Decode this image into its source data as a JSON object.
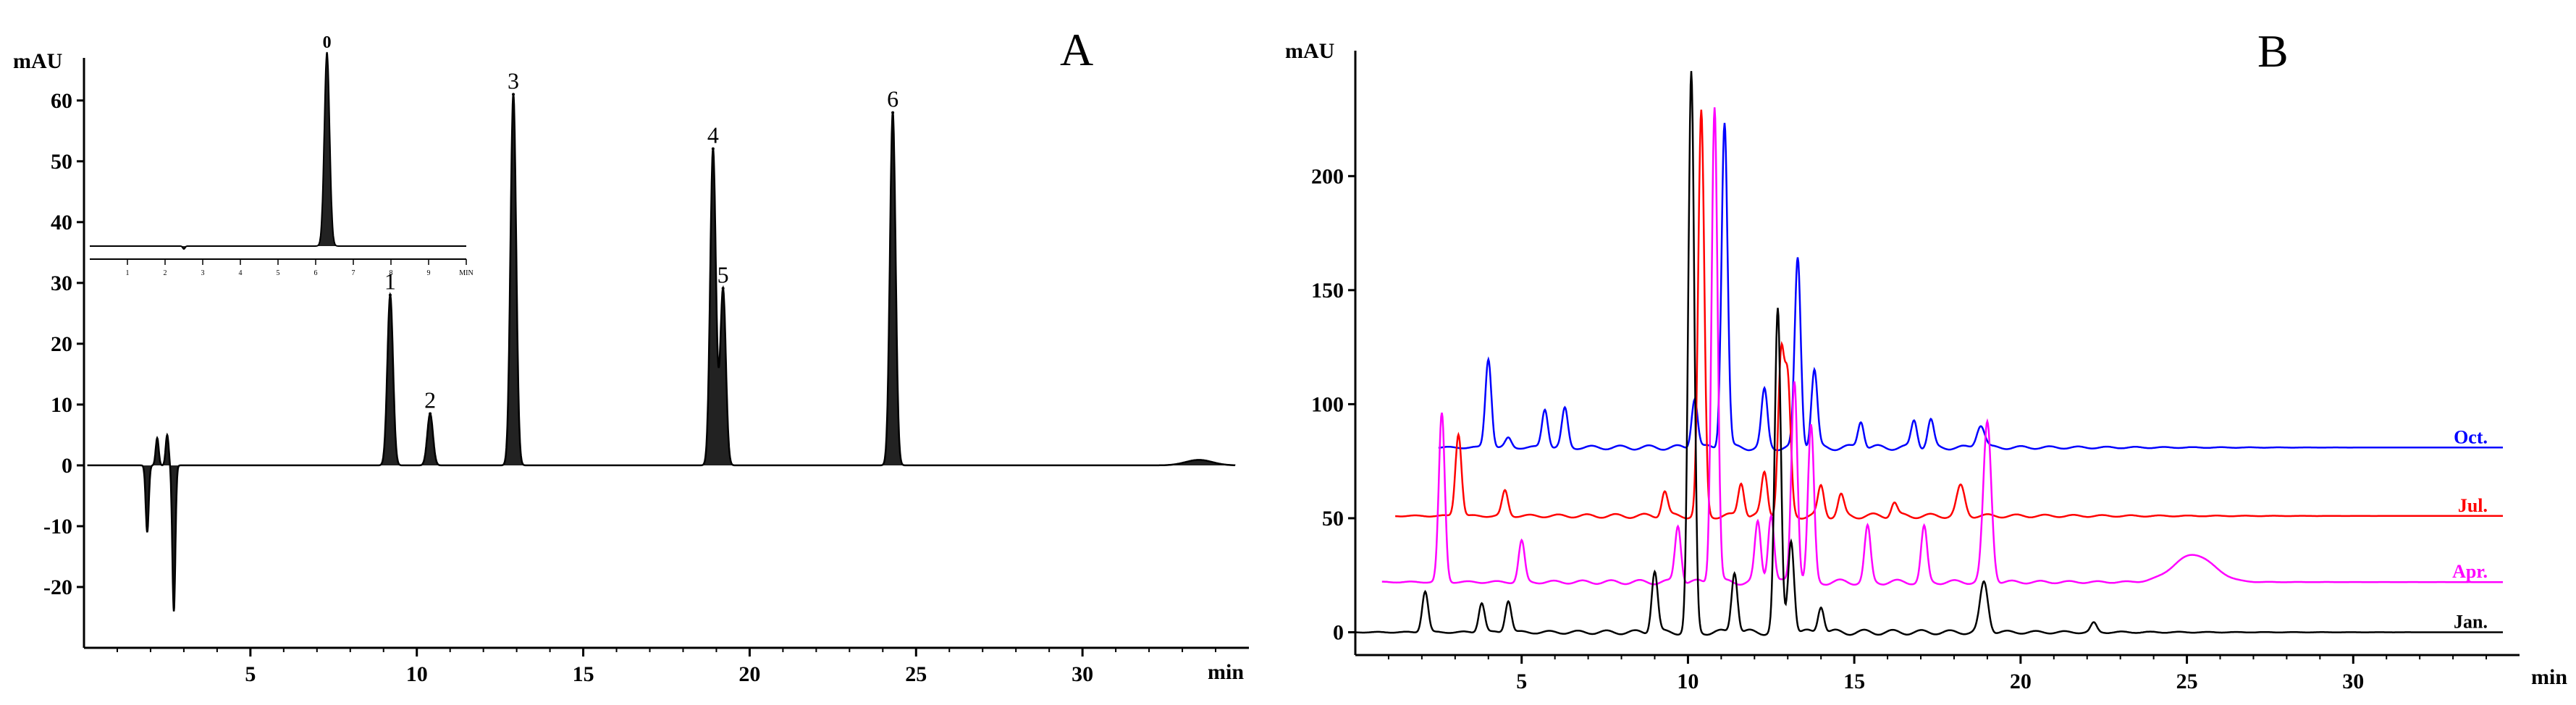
{
  "chart_data": [
    {
      "panel_letter": "A",
      "type": "line",
      "xlabel": "min",
      "ylabel": "mAU",
      "xlim": [
        0,
        35
      ],
      "ylim": [
        -30,
        67
      ],
      "x_ticks": [
        5,
        10,
        15,
        20,
        25,
        30
      ],
      "y_ticks": [
        -20,
        -10,
        0,
        10,
        20,
        30,
        40,
        50,
        60
      ],
      "fill": true,
      "series": [
        {
          "color": "#000000",
          "baseline": 0,
          "peaks": [
            {
              "label": "1",
              "x": 9.2,
              "y": 28
            },
            {
              "label": "2",
              "x": 10.4,
              "y": 8.5
            },
            {
              "label": "3",
              "x": 12.9,
              "y": 61
            },
            {
              "label": "4",
              "x": 18.9,
              "y": 52
            },
            {
              "label": "5",
              "x": 19.2,
              "y": 29
            },
            {
              "label": "6",
              "x": 24.3,
              "y": 58
            }
          ],
          "disturbances": [
            {
              "x": 1.9,
              "y": -11
            },
            {
              "x": 2.2,
              "y": 4.5
            },
            {
              "x": 2.5,
              "y": 5
            },
            {
              "x": 2.7,
              "y": -24
            }
          ]
        }
      ],
      "inset": {
        "xlim": [
          0,
          10
        ],
        "x_ticks": [
          "1",
          "2",
          "3",
          "4",
          "5",
          "6",
          "7",
          "8",
          "9",
          "MIN"
        ],
        "peak": {
          "label": "0",
          "x": 6.3
        }
      }
    },
    {
      "panel_letter": "B",
      "type": "line",
      "xlabel": "min",
      "ylabel": "mAU",
      "xlim": [
        0,
        35
      ],
      "ylim": [
        -10,
        255
      ],
      "x_ticks": [
        5,
        10,
        15,
        20,
        25,
        30
      ],
      "y_ticks": [
        0,
        50,
        100,
        150,
        200
      ],
      "series": [
        {
          "name": "Oct.",
          "color": "#0000ff",
          "baseline": 81,
          "x_start": 2.5,
          "peaks": [
            {
              "x": 4.0,
              "y": 120
            },
            {
              "x": 4.6,
              "y": 85
            },
            {
              "x": 5.7,
              "y": 98
            },
            {
              "x": 6.3,
              "y": 98
            },
            {
              "x": 10.2,
              "y": 103
            },
            {
              "x": 11.1,
              "y": 224
            },
            {
              "x": 12.3,
              "y": 106
            },
            {
              "x": 13.3,
              "y": 164
            },
            {
              "x": 13.8,
              "y": 115
            },
            {
              "x": 15.2,
              "y": 93
            },
            {
              "x": 16.8,
              "y": 93
            },
            {
              "x": 17.3,
              "y": 93
            },
            {
              "x": 18.8,
              "y": 91
            }
          ]
        },
        {
          "name": "Jul.",
          "color": "#ff0000",
          "baseline": 51,
          "x_start": 1.2,
          "peaks": [
            {
              "x": 3.1,
              "y": 87
            },
            {
              "x": 4.5,
              "y": 62
            },
            {
              "x": 9.3,
              "y": 62
            },
            {
              "x": 10.4,
              "y": 228
            },
            {
              "x": 11.6,
              "y": 66
            },
            {
              "x": 12.3,
              "y": 70
            },
            {
              "x": 12.8,
              "y": 120
            },
            {
              "x": 13.0,
              "y": 108
            },
            {
              "x": 14.0,
              "y": 64
            },
            {
              "x": 14.6,
              "y": 60
            },
            {
              "x": 16.2,
              "y": 57
            },
            {
              "x": 18.2,
              "y": 64
            }
          ]
        },
        {
          "name": "Apr.",
          "color": "#ff00ff",
          "baseline": 22,
          "x_start": 0.8,
          "peaks": [
            {
              "x": 2.6,
              "y": 96
            },
            {
              "x": 5.0,
              "y": 40
            },
            {
              "x": 9.7,
              "y": 47
            },
            {
              "x": 10.8,
              "y": 231
            },
            {
              "x": 12.1,
              "y": 48
            },
            {
              "x": 12.5,
              "y": 52
            },
            {
              "x": 13.2,
              "y": 111
            },
            {
              "x": 13.7,
              "y": 90
            },
            {
              "x": 15.4,
              "y": 46
            },
            {
              "x": 17.1,
              "y": 46
            },
            {
              "x": 19.0,
              "y": 92
            },
            {
              "x": 25.2,
              "y": 34
            }
          ]
        },
        {
          "name": "Jan.",
          "color": "#000000",
          "baseline": 0,
          "x_start": 0,
          "peaks": [
            {
              "x": 2.1,
              "y": 18
            },
            {
              "x": 3.8,
              "y": 13
            },
            {
              "x": 4.6,
              "y": 14
            },
            {
              "x": 9.0,
              "y": 27
            },
            {
              "x": 10.1,
              "y": 245
            },
            {
              "x": 11.4,
              "y": 27
            },
            {
              "x": 12.7,
              "y": 141
            },
            {
              "x": 13.1,
              "y": 41
            },
            {
              "x": 14.0,
              "y": 12
            },
            {
              "x": 18.9,
              "y": 22
            },
            {
              "x": 22.2,
              "y": 4
            }
          ]
        }
      ]
    }
  ]
}
